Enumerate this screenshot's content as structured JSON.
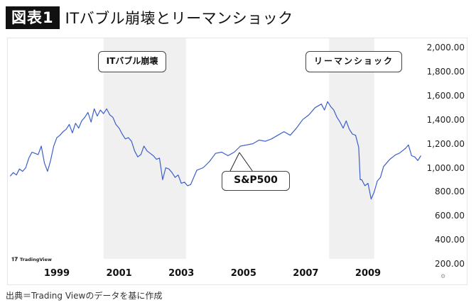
{
  "header": {
    "badge": "図表1",
    "title": "ITバブル崩壊とリーマンショック"
  },
  "source_note": "出典＝Trading Viewのデータを基に作成",
  "branding": {
    "logo_text": "TradingView"
  },
  "annotations": {
    "it_bubble": "ITバブル崩壊",
    "lehman": "リーマンショック",
    "series_label": "S&P500"
  },
  "colors": {
    "line": "#3a5fcd",
    "line_faded": "#8fa6e0",
    "shade": "#f0f0f0",
    "frame": "#e4e4e4"
  },
  "chart_data": {
    "type": "line",
    "title": "ITバブル崩壊とリーマンショック",
    "xlabel": "",
    "ylabel": "",
    "x_tick_labels": [
      "1999",
      "2001",
      "2003",
      "2005",
      "2007",
      "2009"
    ],
    "y_tick_labels": [
      "2,000.00",
      "1,800.00",
      "1,600.00",
      "1,400.00",
      "1,200.00",
      "1,000.00",
      "800.00",
      "600.00",
      "400.00",
      "200.00"
    ],
    "ylim": [
      200,
      2000
    ],
    "xlim": [
      1997.5,
      2010.8
    ],
    "grid": false,
    "legend": "none",
    "shaded_periods": [
      {
        "label": "ITバブル崩壊",
        "start": 2000.5,
        "end": 2003.15
      },
      {
        "label": "リーマンショック",
        "start": 2007.75,
        "end": 2009.2
      }
    ],
    "series": [
      {
        "name": "S&P500",
        "x": [
          1997.5,
          1997.6,
          1997.7,
          1997.8,
          1997.9,
          1998.0,
          1998.1,
          1998.2,
          1998.3,
          1998.4,
          1998.5,
          1998.6,
          1998.7,
          1998.8,
          1998.9,
          1999.0,
          1999.1,
          1999.2,
          1999.3,
          1999.4,
          1999.5,
          1999.6,
          1999.7,
          1999.8,
          1999.9,
          2000.0,
          2000.1,
          2000.2,
          2000.3,
          2000.4,
          2000.5,
          2000.6,
          2000.7,
          2000.8,
          2000.9,
          2001.0,
          2001.1,
          2001.2,
          2001.3,
          2001.4,
          2001.5,
          2001.6,
          2001.7,
          2001.8,
          2001.9,
          2002.0,
          2002.1,
          2002.2,
          2002.3,
          2002.4,
          2002.5,
          2002.6,
          2002.7,
          2002.8,
          2002.9,
          2003.0,
          2003.1,
          2003.2,
          2003.3,
          2003.4,
          2003.5,
          2003.7,
          2003.9,
          2004.1,
          2004.3,
          2004.5,
          2004.7,
          2004.9,
          2005.1,
          2005.3,
          2005.5,
          2005.7,
          2005.9,
          2006.1,
          2006.3,
          2006.5,
          2006.7,
          2006.9,
          2007.1,
          2007.3,
          2007.5,
          2007.6,
          2007.7,
          2007.8,
          2007.9,
          2008.0,
          2008.1,
          2008.2,
          2008.3,
          2008.4,
          2008.5,
          2008.6,
          2008.7,
          2008.75,
          2008.8,
          2008.9,
          2009.0,
          2009.1,
          2009.2,
          2009.3,
          2009.4,
          2009.5,
          2009.6,
          2009.7,
          2009.8,
          2009.9,
          2010.0,
          2010.1,
          2010.2,
          2010.3,
          2010.4,
          2010.5,
          2010.6,
          2010.7
        ],
        "values": [
          930,
          960,
          940,
          990,
          970,
          1000,
          1080,
          1130,
          1120,
          1110,
          1180,
          1040,
          970,
          1060,
          1180,
          1250,
          1270,
          1300,
          1320,
          1360,
          1290,
          1370,
          1330,
          1390,
          1420,
          1460,
          1380,
          1490,
          1430,
          1480,
          1450,
          1490,
          1440,
          1420,
          1360,
          1330,
          1280,
          1240,
          1250,
          1220,
          1140,
          1090,
          1110,
          1180,
          1140,
          1120,
          1100,
          1070,
          1080,
          900,
          1000,
          990,
          960,
          920,
          940,
          870,
          880,
          850,
          860,
          920,
          980,
          1000,
          1050,
          1120,
          1130,
          1100,
          1130,
          1180,
          1190,
          1200,
          1230,
          1220,
          1240,
          1270,
          1300,
          1270,
          1330,
          1400,
          1440,
          1500,
          1530,
          1480,
          1550,
          1510,
          1480,
          1420,
          1380,
          1330,
          1390,
          1320,
          1280,
          1270,
          1170,
          900,
          900,
          850,
          870,
          740,
          800,
          890,
          920,
          1010,
          1040,
          1070,
          1090,
          1110,
          1120,
          1140,
          1160,
          1190,
          1100,
          1090,
          1060,
          1100
        ]
      }
    ]
  }
}
